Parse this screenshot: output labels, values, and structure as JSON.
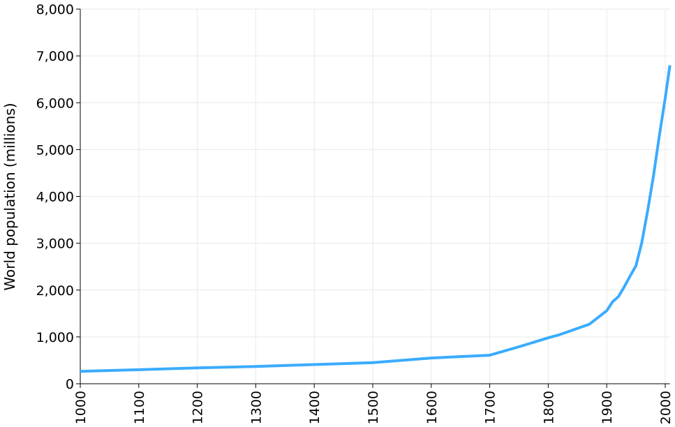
{
  "chart_data": {
    "type": "line",
    "title": "",
    "xlabel": "",
    "ylabel": "World population (millions)",
    "xlim": [
      1000,
      2008
    ],
    "ylim": [
      0,
      8000
    ],
    "grid": true,
    "x_ticks": [
      1000,
      1100,
      1200,
      1300,
      1400,
      1500,
      1600,
      1700,
      1800,
      1900,
      2000
    ],
    "y_ticks": [
      0,
      1000,
      2000,
      3000,
      4000,
      5000,
      6000,
      7000,
      8000
    ],
    "y_tick_labels": [
      "0",
      "1,000",
      "2,000",
      "3,000",
      "4,000",
      "5,000",
      "6,000",
      "7,000",
      "8,000"
    ],
    "line_color": "#3aacff",
    "series": [
      {
        "x": [
          1000,
          1100,
          1200,
          1300,
          1400,
          1500,
          1600,
          1700,
          1750,
          1800,
          1820,
          1870,
          1900,
          1910,
          1920,
          1930,
          1940,
          1950,
          1960,
          1970,
          1980,
          1990,
          2000,
          2008
        ],
        "y": [
          265,
          300,
          340,
          370,
          410,
          450,
          550,
          610,
          790,
          980,
          1050,
          1270,
          1560,
          1750,
          1860,
          2070,
          2300,
          2520,
          3020,
          3700,
          4440,
          5300,
          6100,
          6800
        ]
      }
    ]
  }
}
